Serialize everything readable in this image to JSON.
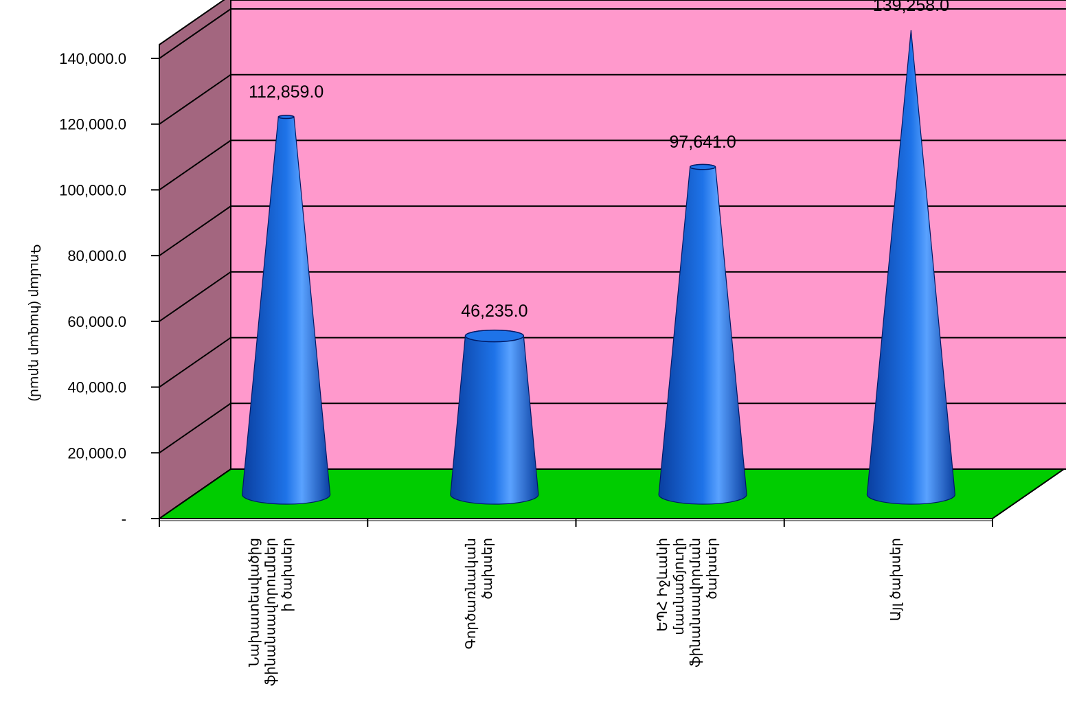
{
  "chart_data": {
    "type": "bar",
    "style": "3d-cone",
    "categories": [
      "Նախատեսվածից ֆինանսավորումներ ի ծախսեր",
      "Գործառնական ծախսեր",
      "ԵՊՀ Իջևանի մասնաճյուղի ֆինանսավորման ծախսեր",
      "Այլ ծախսեր"
    ],
    "values": [
      112859.0,
      46235.0,
      97641.0,
      139258.0
    ],
    "data_labels": [
      "112,859.0",
      "46,235.0",
      "97,641.0",
      "139,258.0"
    ],
    "ylabel": "Գումար (հազար դրամ)",
    "ylim": [
      0,
      140000
    ],
    "yticks": [
      0,
      20000,
      40000,
      60000,
      80000,
      100000,
      120000,
      140000
    ],
    "ytick_labels": [
      "-",
      "20,000.0",
      "40,000.0",
      "60,000.0",
      "80,000.0",
      "100,000.0",
      "120,000.0",
      "140,000.0"
    ],
    "grid": true,
    "legend": "none",
    "colors": {
      "back_wall": "#FF99CC",
      "side_wall": "#A3667F",
      "floor": "#00CC00",
      "cone": "#1E73E8",
      "cone_dark": "#0A3FA0",
      "cone_light": "#5AA2FF"
    }
  }
}
